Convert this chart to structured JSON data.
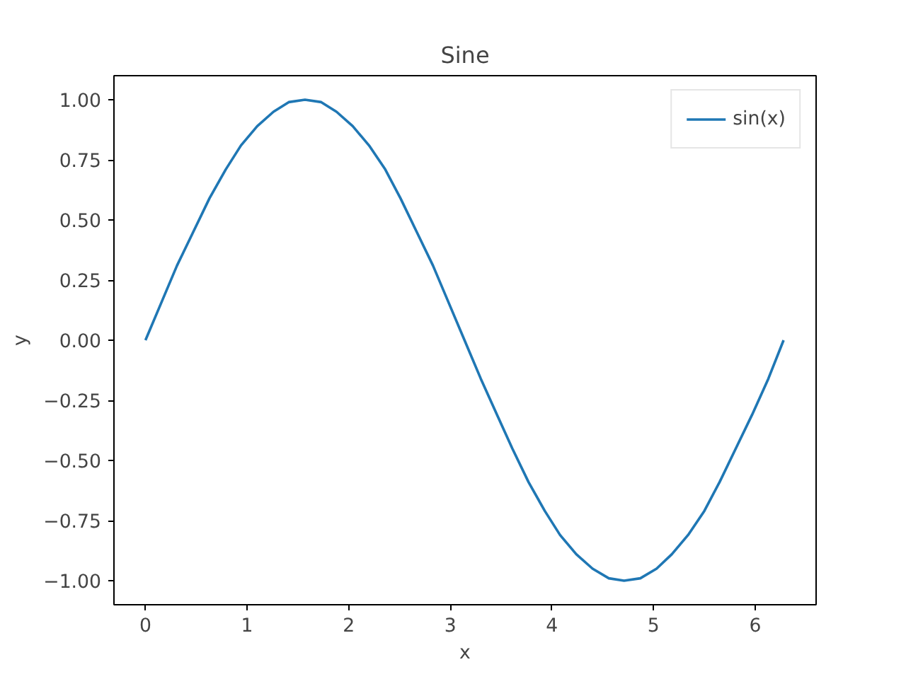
{
  "chart_data": {
    "type": "line",
    "title": "Sine",
    "xlabel": "x",
    "ylabel": "y",
    "x": [
      0,
      0.16,
      0.31,
      0.47,
      0.63,
      0.79,
      0.94,
      1.1,
      1.26,
      1.41,
      1.57,
      1.73,
      1.88,
      2.04,
      2.2,
      2.36,
      2.51,
      2.67,
      2.83,
      2.98,
      3.14,
      3.3,
      3.46,
      3.61,
      3.77,
      3.93,
      4.08,
      4.24,
      4.4,
      4.56,
      4.71,
      4.87,
      5.03,
      5.18,
      5.34,
      5.5,
      5.65,
      5.81,
      5.97,
      6.13,
      6.28
    ],
    "series": [
      {
        "name": "sin(x)",
        "color": "#1f77b4",
        "values": [
          0,
          0.16,
          0.31,
          0.45,
          0.59,
          0.71,
          0.81,
          0.89,
          0.95,
          0.99,
          1,
          0.99,
          0.95,
          0.89,
          0.81,
          0.71,
          0.59,
          0.45,
          0.31,
          0.16,
          0,
          -0.16,
          -0.31,
          -0.45,
          -0.59,
          -0.71,
          -0.81,
          -0.89,
          -0.95,
          -0.99,
          -1,
          -0.99,
          -0.95,
          -0.89,
          -0.81,
          -0.71,
          -0.59,
          -0.45,
          -0.31,
          -0.16,
          0
        ]
      }
    ],
    "xlim": [
      -0.31,
      6.6
    ],
    "ylim": [
      -1.1,
      1.1
    ],
    "xticks": [
      0,
      1,
      2,
      3,
      4,
      5,
      6
    ],
    "yticks": [
      {
        "value": -1,
        "label": "−1.00"
      },
      {
        "value": -0.75,
        "label": "−0.75"
      },
      {
        "value": -0.5,
        "label": "−0.50"
      },
      {
        "value": -0.25,
        "label": "−0.25"
      },
      {
        "value": 0,
        "label": "0.00"
      },
      {
        "value": 0.25,
        "label": "0.25"
      },
      {
        "value": 0.5,
        "label": "0.50"
      },
      {
        "value": 0.75,
        "label": "0.75"
      },
      {
        "value": 1,
        "label": "1.00"
      }
    ],
    "grid": false,
    "legend": "top right",
    "marker": "none",
    "line_style": "solid"
  }
}
